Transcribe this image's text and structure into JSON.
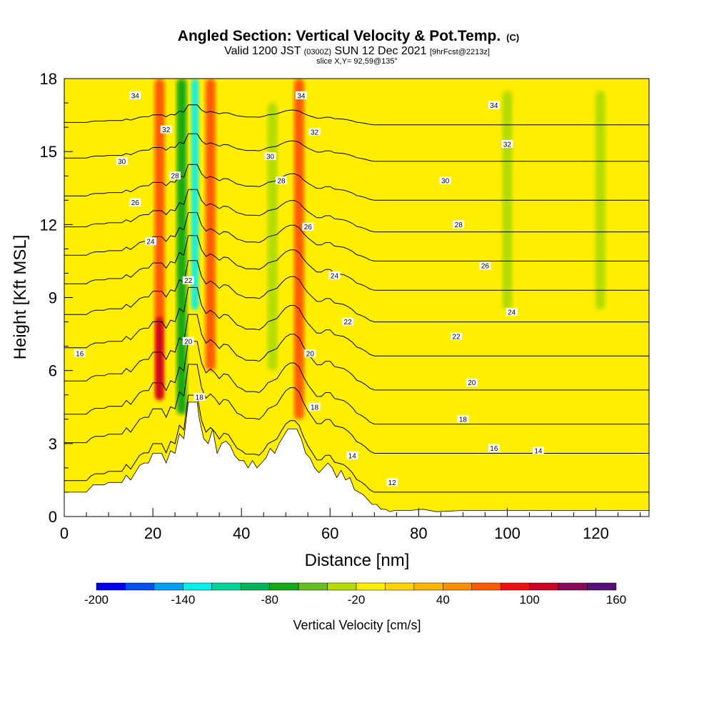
{
  "chart_data": {
    "type": "heatmap",
    "title": "Angled Section: Vertical Velocity & Pot.Temp.",
    "title_suffix": "(C)",
    "subtitle": {
      "valid_prefix": "Valid 1200 JST",
      "utc": "(0300Z)",
      "date": "SUN 12 Dec 2021",
      "forecast": "[9hrFcst@2213z]"
    },
    "slice_label": "slice X,Y= 92,59@135°",
    "xlabel": "Distance [nm]",
    "ylabel": "Height [Kft MSL]",
    "xlim": [
      0,
      132
    ],
    "ylim": [
      0,
      18
    ],
    "x_ticks": [
      "0",
      "20",
      "40",
      "60",
      "80",
      "100",
      "120"
    ],
    "y_ticks": [
      "0",
      "3",
      "6",
      "9",
      "12",
      "15",
      "18"
    ],
    "background_value_cm_s": 0,
    "colorbar": {
      "label": "Vertical Velocity [cm/s]",
      "tick_labels": [
        "-200",
        "-140",
        "-80",
        "-20",
        "40",
        "100",
        "160"
      ],
      "range": [
        -200,
        160
      ],
      "step": 20,
      "colors": [
        "#0000ee",
        "#0050ee",
        "#00a0f5",
        "#00f0f0",
        "#00d49a",
        "#00b45a",
        "#12aa12",
        "#64c020",
        "#b4dc00",
        "#ffee00",
        "#ffd400",
        "#ffb400",
        "#ff9000",
        "#ff5a00",
        "#ee1010",
        "#cc0022",
        "#8a0a5a",
        "#55107a"
      ]
    },
    "velocity_features": [
      {
        "x": 21.5,
        "y_bottom": 4.8,
        "y_top": 18,
        "value": 60
      },
      {
        "x": 21.5,
        "y_bottom": 4.8,
        "y_top": 8.2,
        "value": 110
      },
      {
        "x": 26.5,
        "y_bottom": 4.2,
        "y_top": 18,
        "value": -80
      },
      {
        "x": 29.5,
        "y_bottom": 8.5,
        "y_top": 18,
        "value": -130
      },
      {
        "x": 33,
        "y_bottom": 6,
        "y_top": 18,
        "value": 60
      },
      {
        "x": 47,
        "y_bottom": 6,
        "y_top": 17,
        "value": -40
      },
      {
        "x": 53,
        "y_bottom": 4,
        "y_top": 18,
        "value": 70
      },
      {
        "x": 100,
        "y_bottom": 8.5,
        "y_top": 17.5,
        "value": -40
      },
      {
        "x": 121,
        "y_bottom": 8.5,
        "y_top": 17.5,
        "value": -40
      }
    ],
    "theta_contours": [
      {
        "level": 12,
        "base_height": 1.0
      },
      {
        "level": 14,
        "base_height": 2.6
      },
      {
        "level": 16,
        "base_height": 3.8
      },
      {
        "level": 18,
        "base_height": 5.2
      },
      {
        "level": 20,
        "base_height": 6.6
      },
      {
        "level": 22,
        "base_height": 8.0
      },
      {
        "level": 24,
        "base_height": 9.3
      },
      {
        "level": 26,
        "base_height": 10.5
      },
      {
        "level": 28,
        "base_height": 11.7
      },
      {
        "level": 30,
        "base_height": 13.0
      },
      {
        "level": 32,
        "base_height": 14.6
      },
      {
        "level": 34,
        "base_height": 16.1
      }
    ],
    "contour_labels": [
      {
        "text": "34",
        "x": 16,
        "y": 17.3
      },
      {
        "text": "32",
        "x": 23,
        "y": 15.9
      },
      {
        "text": "30",
        "x": 13,
        "y": 14.6
      },
      {
        "text": "28",
        "x": 25,
        "y": 14.0
      },
      {
        "text": "26",
        "x": 16,
        "y": 12.9
      },
      {
        "text": "24",
        "x": 19.5,
        "y": 11.3
      },
      {
        "text": "22",
        "x": 28,
        "y": 9.7
      },
      {
        "text": "20",
        "x": 28,
        "y": 7.2
      },
      {
        "text": "18",
        "x": 30.5,
        "y": 4.9
      },
      {
        "text": "16",
        "x": 3.5,
        "y": 6.7
      },
      {
        "text": "34",
        "x": 53.5,
        "y": 17.3
      },
      {
        "text": "32",
        "x": 56.5,
        "y": 15.8
      },
      {
        "text": "30",
        "x": 46.5,
        "y": 14.8
      },
      {
        "text": "28",
        "x": 49,
        "y": 13.8
      },
      {
        "text": "26",
        "x": 55,
        "y": 11.9
      },
      {
        "text": "24",
        "x": 61,
        "y": 9.9
      },
      {
        "text": "22",
        "x": 64,
        "y": 8.0
      },
      {
        "text": "20",
        "x": 55.5,
        "y": 6.7
      },
      {
        "text": "18",
        "x": 56.5,
        "y": 4.5
      },
      {
        "text": "14",
        "x": 65,
        "y": 2.5
      },
      {
        "text": "12",
        "x": 74,
        "y": 1.4
      },
      {
        "text": "34",
        "x": 97,
        "y": 16.9
      },
      {
        "text": "32",
        "x": 100,
        "y": 15.3
      },
      {
        "text": "30",
        "x": 86,
        "y": 13.8
      },
      {
        "text": "28",
        "x": 89,
        "y": 12.0
      },
      {
        "text": "26",
        "x": 95,
        "y": 10.3
      },
      {
        "text": "24",
        "x": 101,
        "y": 8.4
      },
      {
        "text": "22",
        "x": 88.5,
        "y": 7.4
      },
      {
        "text": "20",
        "x": 92,
        "y": 5.5
      },
      {
        "text": "18",
        "x": 90,
        "y": 4.0
      },
      {
        "text": "16",
        "x": 97,
        "y": 2.8
      },
      {
        "text": "14",
        "x": 107,
        "y": 2.7
      }
    ],
    "terrain_profile": [
      [
        0,
        1.0
      ],
      [
        5,
        1.0
      ],
      [
        6.5,
        1.3
      ],
      [
        9,
        1.3
      ],
      [
        10,
        1.4
      ],
      [
        13,
        1.4
      ],
      [
        14,
        1.7
      ],
      [
        15,
        1.5
      ],
      [
        16,
        1.8
      ],
      [
        17,
        2.1
      ],
      [
        18,
        2.2
      ],
      [
        19,
        2.2
      ],
      [
        20,
        2.6
      ],
      [
        22,
        2.6
      ],
      [
        23,
        2.2
      ],
      [
        24,
        2.7
      ],
      [
        25,
        2.6
      ],
      [
        26,
        3.4
      ],
      [
        27,
        3.2
      ],
      [
        28,
        4.7
      ],
      [
        30,
        4.7
      ],
      [
        30.5,
        4.0
      ],
      [
        31.5,
        3.2
      ],
      [
        32.5,
        3.0
      ],
      [
        33.5,
        3.6
      ],
      [
        34.5,
        2.6
      ],
      [
        35.5,
        3.0
      ],
      [
        36.5,
        3.1
      ],
      [
        37.5,
        2.9
      ],
      [
        38.5,
        2.5
      ],
      [
        39.5,
        2.3
      ],
      [
        40.5,
        2.3
      ],
      [
        41.5,
        2.0
      ],
      [
        42.5,
        2.3
      ],
      [
        43.5,
        2.0
      ],
      [
        44.5,
        2.2
      ],
      [
        45.5,
        2.4
      ],
      [
        46.5,
        2.8
      ],
      [
        47.5,
        2.6
      ],
      [
        48.5,
        3.0
      ],
      [
        49.5,
        3.3
      ],
      [
        50.5,
        3.6
      ],
      [
        52.5,
        3.6
      ],
      [
        53.5,
        3.2
      ],
      [
        54.5,
        2.6
      ],
      [
        55.5,
        2.4
      ],
      [
        56.5,
        2.0
      ],
      [
        57.5,
        1.8
      ],
      [
        58.5,
        2.0
      ],
      [
        59.5,
        2.2
      ],
      [
        60.5,
        2.0
      ],
      [
        61.5,
        1.6
      ],
      [
        62.5,
        1.9
      ],
      [
        63.5,
        1.5
      ],
      [
        64.5,
        1.6
      ],
      [
        65.5,
        1.1
      ],
      [
        66.5,
        1.0
      ],
      [
        67.5,
        0.9
      ],
      [
        68.5,
        0.7
      ],
      [
        69.5,
        0.5
      ],
      [
        70.5,
        0.5
      ],
      [
        71.5,
        0.3
      ],
      [
        72.5,
        0.3
      ],
      [
        73.5,
        0.2
      ],
      [
        74.5,
        0.25
      ],
      [
        78,
        0.25
      ],
      [
        81,
        0.3
      ],
      [
        84,
        0.2
      ],
      [
        90,
        0.25
      ],
      [
        110,
        0.25
      ],
      [
        132,
        0.25
      ]
    ]
  }
}
